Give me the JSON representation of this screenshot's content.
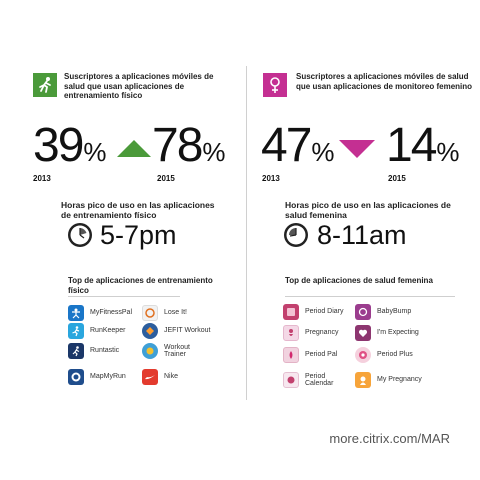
{
  "colors": {
    "fitness": "#4b9a3a",
    "women": "#c42f92"
  },
  "left": {
    "icon": "running-person-icon",
    "title": "Suscriptores a aplicaciones móviles de salud que usan aplicaciones de entrenamiento físico",
    "stat_from": {
      "value": "39",
      "sign": "%",
      "year": "2013"
    },
    "stat_to": {
      "value": "78",
      "sign": "%",
      "year": "2015"
    },
    "trend": "up",
    "hours_title": "Horas pico de uso en las aplicaciones de entrenamiento físico",
    "hours_value": "5-7pm",
    "top_title": "Top de aplicaciones de entrenamiento físico",
    "apps": [
      {
        "name": "MyFitnessPal",
        "icon": "myfitnesspal-icon"
      },
      {
        "name": "Lose It!",
        "icon": "loseit-icon"
      },
      {
        "name": "RunKeeper",
        "icon": "runkeeper-icon"
      },
      {
        "name": "JEFIT Workout",
        "icon": "jefit-icon"
      },
      {
        "name": "Runtastic",
        "icon": "runtastic-icon"
      },
      {
        "name": "Workout Trainer",
        "icon": "workout-trainer-icon"
      },
      {
        "name": "MapMyRun",
        "icon": "mapmyrun-icon"
      },
      {
        "name": "Nike",
        "icon": "nike-icon"
      }
    ]
  },
  "right": {
    "icon": "female-symbol-icon",
    "title": "Suscriptores a aplicaciones móviles de salud que usan aplicaciones de monitoreo femenino",
    "stat_from": {
      "value": "47",
      "sign": "%",
      "year": "2013"
    },
    "stat_to": {
      "value": "14",
      "sign": "%",
      "year": "2015"
    },
    "trend": "down",
    "hours_title": "Horas pico de uso en las aplicaciones de salud femenina",
    "hours_value": "8-11am",
    "top_title": "Top de aplicaciones de salud femenina",
    "apps": [
      {
        "name": "Period Diary",
        "icon": "period-diary-icon"
      },
      {
        "name": "BabyBump",
        "icon": "babybump-icon"
      },
      {
        "name": "Pregnancy",
        "icon": "pregnancy-icon"
      },
      {
        "name": "I'm Expecting",
        "icon": "im-expecting-icon"
      },
      {
        "name": "Period Pal",
        "icon": "period-pal-icon"
      },
      {
        "name": "Period Plus",
        "icon": "period-plus-icon"
      },
      {
        "name": "Period Calendar",
        "icon": "period-calendar-icon"
      },
      {
        "name": "My Pregnancy",
        "icon": "my-pregnancy-icon"
      }
    ]
  },
  "footer": "more.citrix.com/MAR"
}
